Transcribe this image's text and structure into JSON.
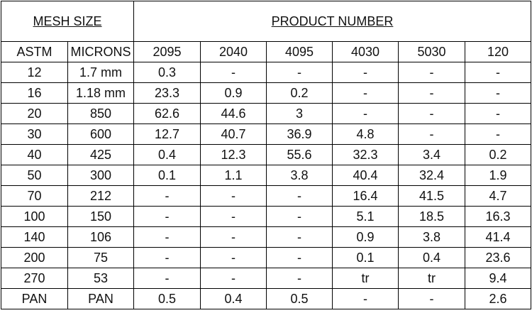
{
  "table": {
    "group_headers": [
      "MESH SIZE",
      "PRODUCT NUMBER"
    ],
    "columns": [
      "ASTM",
      "MICRONS",
      "2095",
      "2040",
      "4095",
      "4030",
      "5030",
      "120"
    ],
    "rows": [
      [
        "12",
        "1.7 mm",
        "0.3",
        "-",
        "-",
        "-",
        "-",
        "-"
      ],
      [
        "16",
        "1.18 mm",
        "23.3",
        "0.9",
        "0.2",
        "-",
        "-",
        "-"
      ],
      [
        "20",
        "850",
        "62.6",
        "44.6",
        "3",
        "-",
        "-",
        "-"
      ],
      [
        "30",
        "600",
        "12.7",
        "40.7",
        "36.9",
        "4.8",
        "-",
        "-"
      ],
      [
        "40",
        "425",
        "0.4",
        "12.3",
        "55.6",
        "32.3",
        "3.4",
        "0.2"
      ],
      [
        "50",
        "300",
        "0.1",
        "1.1",
        "3.8",
        "40.4",
        "32.4",
        "1.9"
      ],
      [
        "70",
        "212",
        "-",
        "-",
        "-",
        "16.4",
        "41.5",
        "4.7"
      ],
      [
        "100",
        "150",
        "-",
        "-",
        "-",
        "5.1",
        "18.5",
        "16.3"
      ],
      [
        "140",
        "106",
        "-",
        "-",
        "-",
        "0.9",
        "3.8",
        "41.4"
      ],
      [
        "200",
        "75",
        "-",
        "-",
        "-",
        "0.1",
        "0.4",
        "23.6"
      ],
      [
        "270",
        "53",
        "-",
        "-",
        "-",
        "tr",
        "tr",
        "9.4"
      ],
      [
        "PAN",
        "PAN",
        "0.5",
        "0.4",
        "0.5",
        "-",
        "-",
        "2.6"
      ]
    ]
  }
}
